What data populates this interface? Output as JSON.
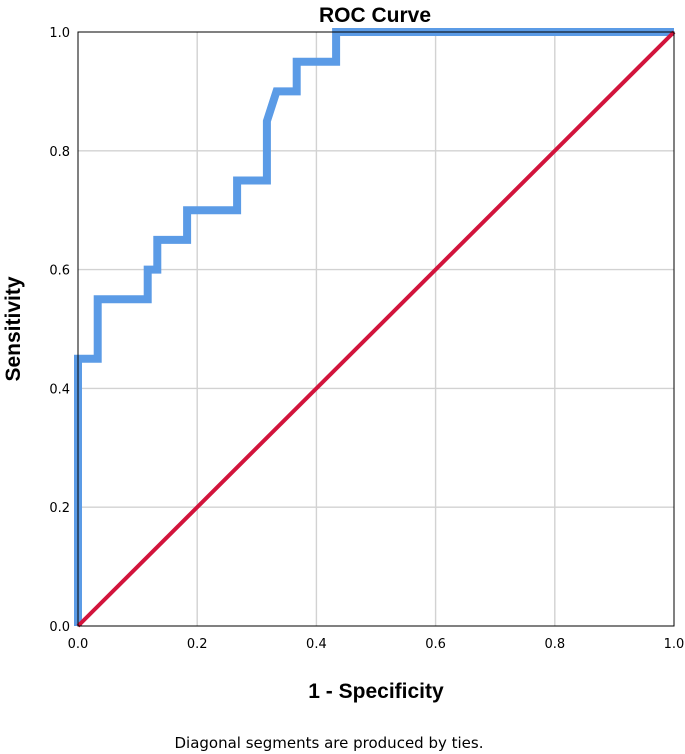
{
  "chart_data": {
    "type": "line",
    "title": "ROC Curve",
    "xlabel": "1 - Specificity",
    "ylabel": "Sensitivity",
    "xlim": [
      0,
      1
    ],
    "ylim": [
      0,
      1
    ],
    "x_ticks": [
      "0.0",
      "0.2",
      "0.4",
      "0.6",
      "0.8",
      "1.0"
    ],
    "y_ticks": [
      "0.0",
      "0.2",
      "0.4",
      "0.6",
      "0.8",
      "1.0"
    ],
    "grid": true,
    "footnote": "Diagonal segments are produced by ties.",
    "series": [
      {
        "color": "#5b9be6",
        "x": [
          0.0,
          0.0,
          0.033,
          0.033,
          0.117,
          0.117,
          0.133,
          0.133,
          0.183,
          0.183,
          0.267,
          0.267,
          0.317,
          0.317,
          0.333,
          0.333,
          0.367,
          0.367,
          0.433,
          0.433,
          1.0
        ],
        "y": [
          0.0,
          0.45,
          0.45,
          0.55,
          0.55,
          0.6,
          0.6,
          0.65,
          0.65,
          0.7,
          0.7,
          0.75,
          0.75,
          0.85,
          0.9,
          0.9,
          0.9,
          0.95,
          0.95,
          1.0,
          1.0
        ]
      },
      {
        "color": "#d2143c",
        "x": [
          0,
          1
        ],
        "y": [
          0,
          1
        ]
      }
    ]
  }
}
